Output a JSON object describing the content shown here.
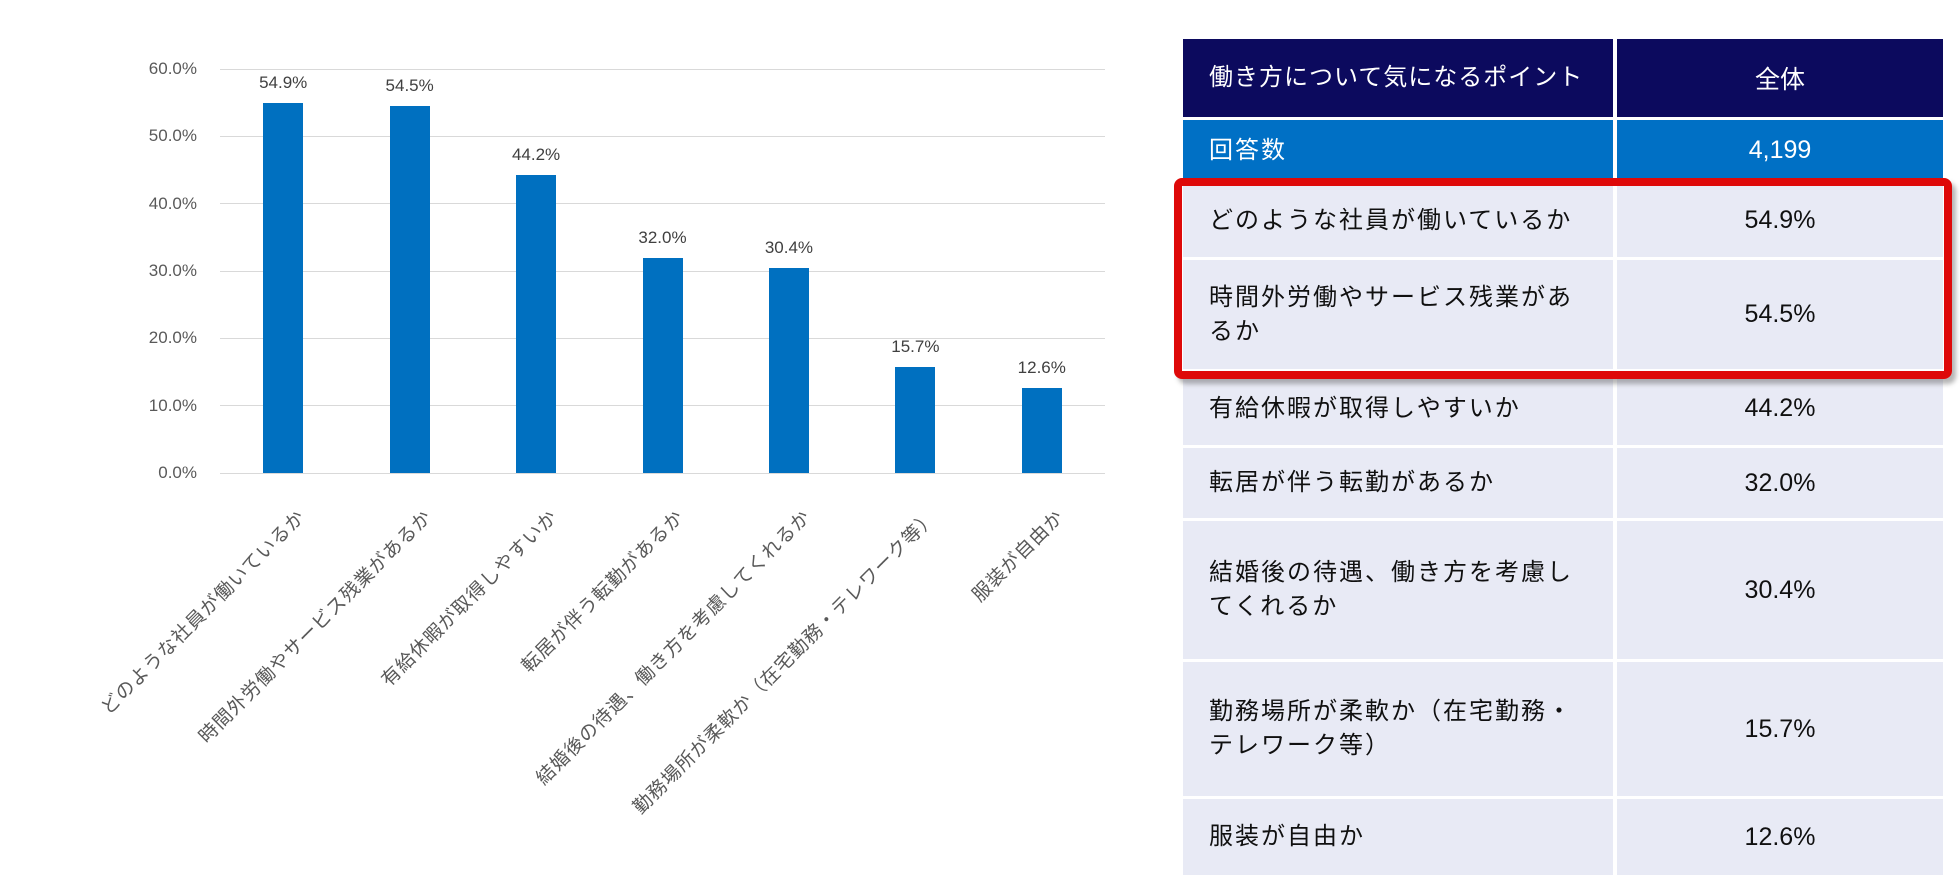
{
  "chart_data": {
    "type": "bar",
    "title": "",
    "categories": [
      "どのような社員が働いているか",
      "時間外労働やサービス残業があるか",
      "有給休暇が取得しやすいか",
      "転居が伴う転勤があるか",
      "結婚後の待遇、働き方を考慮してくれるか",
      "勤務場所が柔軟か（在宅勤務・テレワーク等）",
      "服装が自由か"
    ],
    "values": [
      54.9,
      54.5,
      44.2,
      32.0,
      30.4,
      15.7,
      12.6
    ],
    "value_labels": [
      "54.9%",
      "54.5%",
      "44.2%",
      "32.0%",
      "30.4%",
      "15.7%",
      "12.6%"
    ],
    "xlabel": "",
    "ylabel": "",
    "ylim": [
      0,
      60
    ],
    "ytick_labels": [
      "0.0%",
      "10.0%",
      "20.0%",
      "30.0%",
      "40.0%",
      "50.0%",
      "60.0%"
    ],
    "grid": true,
    "legend": "none",
    "bar_color": "#0070C0",
    "category_rotation_deg": 45
  },
  "table": {
    "header": {
      "point_column": "働き方について気になるポイント",
      "total_column": "全体"
    },
    "respondents_row": {
      "label": "回答数",
      "value": "4,199"
    },
    "rows": [
      {
        "label": "どのような社員が働いているか",
        "value": "54.9%",
        "highlighted": true
      },
      {
        "label": "時間外労働やサービス残業があるか",
        "value": "54.5%",
        "highlighted": true
      },
      {
        "label": "有給休暇が取得しやすいか",
        "value": "44.2%",
        "highlighted": false
      },
      {
        "label": "転居が伴う転勤があるか",
        "value": "32.0%",
        "highlighted": false
      },
      {
        "label": "結婚後の待遇、働き方を考慮してくれるか",
        "value": "30.4%",
        "highlighted": false
      },
      {
        "label": "勤務場所が柔軟か（在宅勤務・テレワーク等）",
        "value": "15.7%",
        "highlighted": false
      },
      {
        "label": "服装が自由か",
        "value": "12.6%",
        "highlighted": false
      }
    ]
  },
  "colors": {
    "bar": "#0070C0",
    "table_header_bg": "#0C0A5E",
    "respondents_row_bg": "#0070C5",
    "body_row_bg": "#E8EAF5",
    "highlight_border": "#DE0909",
    "axis_text": "#595959",
    "value_label_text": "#404040",
    "gridline": "#D9D9D9"
  }
}
